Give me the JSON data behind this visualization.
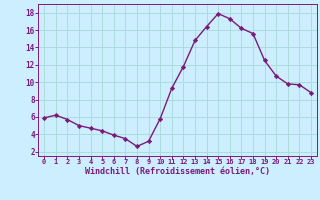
{
  "x": [
    0,
    1,
    2,
    3,
    4,
    5,
    6,
    7,
    8,
    9,
    10,
    11,
    12,
    13,
    14,
    15,
    16,
    17,
    18,
    19,
    20,
    21,
    22,
    23
  ],
  "y": [
    5.9,
    6.2,
    5.7,
    5.0,
    4.7,
    4.4,
    3.9,
    3.5,
    2.6,
    3.2,
    5.8,
    9.3,
    11.8,
    14.8,
    16.4,
    17.9,
    17.3,
    16.2,
    15.6,
    12.5,
    10.7,
    9.8,
    9.7,
    8.8
  ],
  "line_color": "#7b1a7b",
  "marker": "D",
  "markersize": 2.2,
  "linewidth": 1.0,
  "bg_color": "#cceeff",
  "grid_color": "#aadddd",
  "xlabel": "Windchill (Refroidissement éolien,°C)",
  "xlim": [
    -0.5,
    23.5
  ],
  "ylim": [
    1.5,
    19.0
  ],
  "yticks": [
    2,
    4,
    6,
    8,
    10,
    12,
    14,
    16,
    18
  ],
  "xticks": [
    0,
    1,
    2,
    3,
    4,
    5,
    6,
    7,
    8,
    9,
    10,
    11,
    12,
    13,
    14,
    15,
    16,
    17,
    18,
    19,
    20,
    21,
    22,
    23
  ],
  "tick_color": "#7b1a7b",
  "label_color": "#7b1a7b",
  "axis_color": "#7b1a7b",
  "xlabel_fontsize": 6.0,
  "tick_fontsize_x": 5.0,
  "tick_fontsize_y": 5.5
}
